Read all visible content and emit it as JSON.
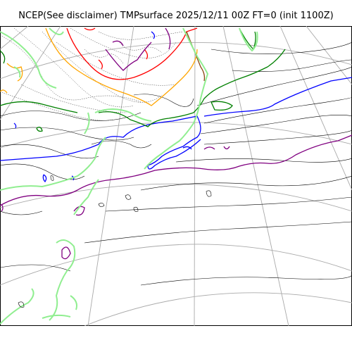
{
  "title": "NCEP(See disclaimer) TMPsurface 2025/12/11 00Z FT=0 (init 1100Z)",
  "map": {
    "variable": "TMPsurface",
    "contour_colors": {
      "light_green": "#90ee90",
      "green": "#008000",
      "blue": "#0000ff",
      "purple": "#800080",
      "orange": "#ffa500",
      "red": "#ff0000",
      "brown": "#8b4513",
      "black": "#000000",
      "graticule": "#a9a9a9"
    }
  }
}
